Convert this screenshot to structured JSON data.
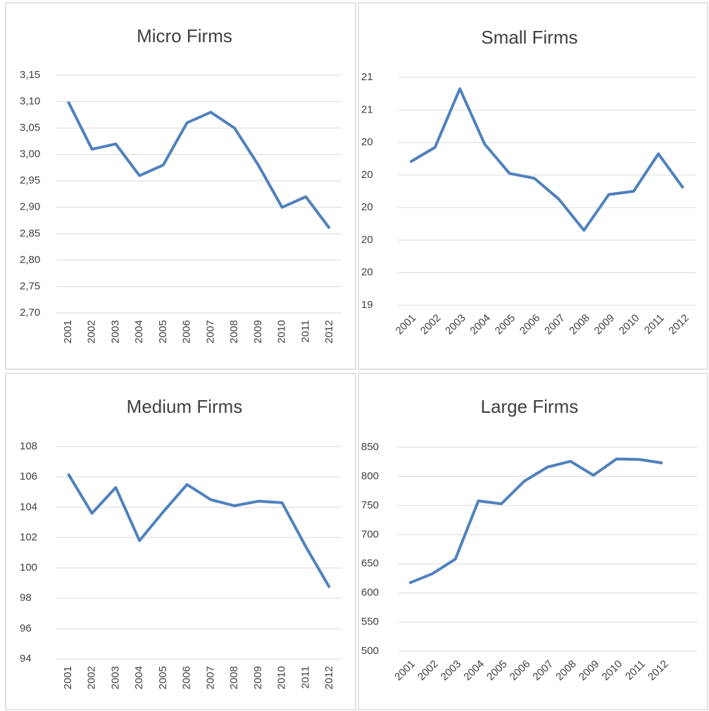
{
  "chart_data": [
    {
      "type": "line",
      "title": "Micro Firms",
      "categories": [
        "2001",
        "2002",
        "2003",
        "2004",
        "2005",
        "2006",
        "2007",
        "2008",
        "2009",
        "2010",
        "2011",
        "2012"
      ],
      "values": [
        3.1,
        3.01,
        3.02,
        2.96,
        2.98,
        3.06,
        3.08,
        3.05,
        2.98,
        2.9,
        2.92,
        2.86
      ],
      "color": "#4f81bd",
      "ylim": [
        2.7,
        3.15
      ],
      "yticks": [
        {
          "value": 2.7,
          "label": "2,70"
        },
        {
          "value": 2.75,
          "label": "2,75"
        },
        {
          "value": 2.8,
          "label": "2,80"
        },
        {
          "value": 2.85,
          "label": "2,85"
        },
        {
          "value": 2.9,
          "label": "2,90"
        },
        {
          "value": 2.95,
          "label": "2,95"
        },
        {
          "value": 3.0,
          "label": "3,00"
        },
        {
          "value": 3.05,
          "label": "3,05"
        },
        {
          "value": 3.1,
          "label": "3,10"
        },
        {
          "value": 3.15,
          "label": "3,15"
        }
      ],
      "grid": true
    },
    {
      "type": "line",
      "title": "Small Firms",
      "categories": [
        "2001",
        "2002",
        "2003",
        "2004",
        "2005",
        "2006",
        "2007",
        "2008",
        "2009",
        "2010",
        "2011",
        "2012"
      ],
      "values": [
        20.28,
        20.37,
        20.73,
        20.39,
        20.21,
        20.18,
        20.05,
        19.86,
        20.08,
        20.1,
        20.33,
        20.12
      ],
      "color": "#4f81bd",
      "ylim": [
        19.4,
        20.8
      ],
      "yticks": [
        {
          "value": 19.4,
          "label": "19"
        },
        {
          "value": 19.6,
          "label": "20"
        },
        {
          "value": 19.8,
          "label": "20"
        },
        {
          "value": 20.0,
          "label": "20"
        },
        {
          "value": 20.2,
          "label": "20"
        },
        {
          "value": 20.4,
          "label": "20"
        },
        {
          "value": 20.6,
          "label": "21"
        },
        {
          "value": 20.8,
          "label": "21"
        }
      ],
      "grid": true
    },
    {
      "type": "line",
      "title": "Medium Firms",
      "categories": [
        "2001",
        "2002",
        "2003",
        "2004",
        "2005",
        "2006",
        "2007",
        "2008",
        "2009",
        "2010",
        "2011",
        "2012"
      ],
      "values": [
        106.2,
        103.6,
        105.3,
        101.8,
        103.7,
        105.5,
        104.5,
        104.1,
        104.4,
        104.3,
        101.4,
        98.7
      ],
      "color": "#4f81bd",
      "ylim": [
        94,
        108
      ],
      "yticks": [
        94,
        96,
        98,
        100,
        102,
        104,
        106,
        108
      ],
      "grid": true
    },
    {
      "type": "line",
      "title": "Large Firms",
      "categories": [
        "2001",
        "2002",
        "2003",
        "2004",
        "2005",
        "2006",
        "2007",
        "2008",
        "2009",
        "2010",
        "2011",
        "2012"
      ],
      "values": [
        617,
        633,
        658,
        758,
        753,
        792,
        816,
        826,
        802,
        830,
        829,
        823
      ],
      "color": "#4f81bd",
      "ylim": [
        500,
        850
      ],
      "yticks": [
        500,
        550,
        600,
        650,
        700,
        750,
        800,
        850
      ],
      "grid": true
    }
  ]
}
